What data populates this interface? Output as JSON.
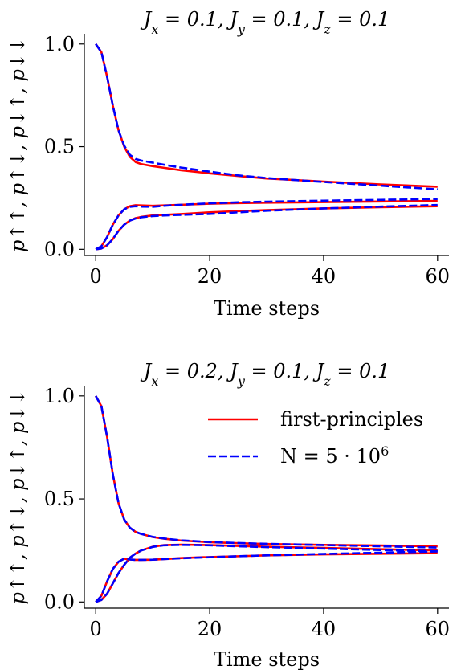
{
  "chart_data": [
    {
      "type": "line",
      "title": "J_x = 0.1, J_y = 0.1, J_z = 0.1",
      "xlabel": "Time steps",
      "ylabel": "p↑↑, p↑↓, p↓↑, p↓↓",
      "xlim": [
        -2,
        62
      ],
      "ylim": [
        -0.03,
        1.05
      ],
      "xticks": [
        0,
        20,
        40,
        60
      ],
      "xtick_labels": [
        "0",
        "20",
        "40",
        "60"
      ],
      "yticks": [
        0.0,
        0.5,
        1.0
      ],
      "ytick_labels": [
        "0.0",
        "0.5",
        "1.0"
      ],
      "grid": false,
      "x": [
        0,
        1,
        2,
        3,
        4,
        5,
        6,
        7,
        8,
        10,
        12,
        15,
        20,
        25,
        30,
        40,
        50,
        60
      ],
      "series": [
        {
          "style": "solid",
          "color": "#ff0000",
          "values": [
            1.0,
            0.96,
            0.84,
            0.7,
            0.58,
            0.5,
            0.45,
            0.425,
            0.415,
            0.405,
            0.397,
            0.385,
            0.37,
            0.357,
            0.345,
            0.33,
            0.316,
            0.305
          ]
        },
        {
          "style": "solid",
          "color": "#ff0000",
          "values": [
            0.0,
            0.015,
            0.06,
            0.12,
            0.165,
            0.195,
            0.21,
            0.215,
            0.214,
            0.212,
            0.214,
            0.217,
            0.222,
            0.225,
            0.227,
            0.23,
            0.233,
            0.236
          ]
        },
        {
          "style": "solid",
          "color": "#ff0000",
          "values": [
            0.0,
            0.004,
            0.02,
            0.05,
            0.09,
            0.12,
            0.14,
            0.152,
            0.158,
            0.165,
            0.168,
            0.172,
            0.18,
            0.186,
            0.191,
            0.199,
            0.205,
            0.21
          ]
        },
        {
          "style": "dashed",
          "color": "#0000ff",
          "values": [
            1.0,
            0.96,
            0.84,
            0.7,
            0.58,
            0.505,
            0.46,
            0.44,
            0.432,
            0.422,
            0.412,
            0.398,
            0.378,
            0.36,
            0.347,
            0.328,
            0.31,
            0.292
          ]
        },
        {
          "style": "dashed",
          "color": "#0000ff",
          "values": [
            0.0,
            0.015,
            0.06,
            0.12,
            0.165,
            0.195,
            0.207,
            0.21,
            0.208,
            0.207,
            0.212,
            0.217,
            0.224,
            0.229,
            0.232,
            0.237,
            0.241,
            0.245
          ]
        },
        {
          "style": "dashed",
          "color": "#0000ff",
          "values": [
            0.0,
            0.004,
            0.02,
            0.05,
            0.09,
            0.12,
            0.14,
            0.15,
            0.156,
            0.162,
            0.165,
            0.168,
            0.172,
            0.18,
            0.188,
            0.199,
            0.208,
            0.216
          ]
        }
      ]
    },
    {
      "type": "line",
      "title": "J_x = 0.2, J_y = 0.1, J_z = 0.1",
      "xlabel": "Time steps",
      "ylabel": "p↑↑, p↑↓, p↓↑, p↓↓",
      "xlim": [
        -2,
        62
      ],
      "ylim": [
        -0.03,
        1.05
      ],
      "xticks": [
        0,
        20,
        40,
        60
      ],
      "xtick_labels": [
        "0",
        "20",
        "40",
        "60"
      ],
      "yticks": [
        0.0,
        0.5,
        1.0
      ],
      "ytick_labels": [
        "0.0",
        "0.5",
        "1.0"
      ],
      "grid": false,
      "legend": {
        "placement": "top-right",
        "entries": [
          {
            "label": "first-principles",
            "style": "solid",
            "color": "#ff0000"
          },
          {
            "label": "N = 5 · 10^6",
            "style": "dashed",
            "color": "#0000ff"
          }
        ]
      },
      "x": [
        0,
        1,
        2,
        3,
        4,
        5,
        6,
        7,
        8,
        10,
        12,
        15,
        20,
        25,
        30,
        40,
        50,
        60
      ],
      "series": [
        {
          "style": "solid",
          "color": "#ff0000",
          "values": [
            1.0,
            0.95,
            0.8,
            0.62,
            0.48,
            0.4,
            0.36,
            0.34,
            0.33,
            0.315,
            0.307,
            0.298,
            0.29,
            0.285,
            0.281,
            0.277,
            0.274,
            0.27
          ]
        },
        {
          "style": "solid",
          "color": "#ff0000",
          "values": [
            0.0,
            0.03,
            0.1,
            0.16,
            0.195,
            0.21,
            0.206,
            0.204,
            0.204,
            0.205,
            0.208,
            0.213,
            0.218,
            0.222,
            0.226,
            0.231,
            0.234,
            0.237
          ]
        },
        {
          "style": "solid",
          "color": "#ff0000",
          "values": [
            0.0,
            0.01,
            0.04,
            0.09,
            0.14,
            0.18,
            0.215,
            0.235,
            0.25,
            0.268,
            0.276,
            0.278,
            0.276,
            0.272,
            0.268,
            0.262,
            0.256,
            0.25
          ]
        },
        {
          "style": "dashed",
          "color": "#0000ff",
          "values": [
            1.0,
            0.95,
            0.8,
            0.62,
            0.48,
            0.4,
            0.36,
            0.34,
            0.33,
            0.316,
            0.308,
            0.299,
            0.291,
            0.286,
            0.282,
            0.276,
            0.27,
            0.264
          ]
        },
        {
          "style": "dashed",
          "color": "#0000ff",
          "values": [
            0.0,
            0.03,
            0.1,
            0.16,
            0.195,
            0.21,
            0.206,
            0.204,
            0.204,
            0.205,
            0.208,
            0.212,
            0.217,
            0.222,
            0.226,
            0.233,
            0.239,
            0.245
          ]
        },
        {
          "style": "dashed",
          "color": "#0000ff",
          "values": [
            0.0,
            0.01,
            0.04,
            0.09,
            0.14,
            0.18,
            0.215,
            0.235,
            0.25,
            0.267,
            0.275,
            0.277,
            0.275,
            0.27,
            0.266,
            0.259,
            0.252,
            0.246
          ]
        }
      ]
    }
  ]
}
